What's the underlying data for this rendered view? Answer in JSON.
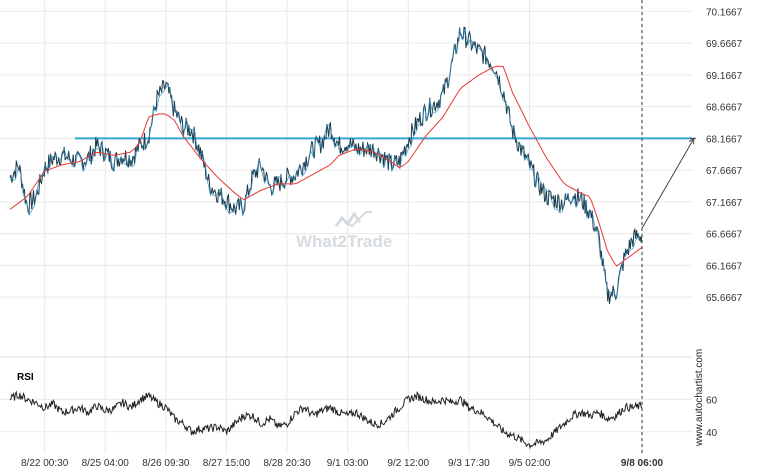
{
  "watermark": "What2Trade",
  "credit": "www.autochartist.com",
  "chart_data": [
    {
      "type": "line",
      "name": "price",
      "y_ticks": [
        65.6667,
        66.1667,
        66.6667,
        67.1667,
        67.6667,
        68.1667,
        68.6667,
        69.1667,
        69.6667,
        70.1667
      ],
      "y_tick_labels": [
        "65.6667",
        "66.1667",
        "66.6667",
        "67.1667",
        "67.6667",
        "68.1667",
        "68.6667",
        "69.1667",
        "69.6667",
        "70.1667"
      ],
      "ylim": [
        65.15,
        70.25
      ],
      "x_tick_labels": [
        "8/22 00:30",
        "8/25 04:00",
        "8/26 09:30",
        "8/27 15:00",
        "8/28 20:30",
        "9/1 03:00",
        "9/2 12:00",
        "9/3 17:30",
        "9/5 02:00",
        "9/8 06:00"
      ],
      "last_x_tick_bold": true,
      "grid": true,
      "legend": "none",
      "price_anchors": [
        [
          0,
          67.55
        ],
        [
          1,
          67.75
        ],
        [
          2,
          67.1
        ],
        [
          3,
          67.25
        ],
        [
          4,
          67.7
        ],
        [
          5,
          67.85
        ],
        [
          6,
          67.9
        ],
        [
          7,
          67.85
        ],
        [
          8,
          67.8
        ],
        [
          9,
          67.85
        ],
        [
          10,
          68.05
        ],
        [
          11,
          67.95
        ],
        [
          12,
          67.8
        ],
        [
          13,
          67.9
        ],
        [
          14,
          67.85
        ],
        [
          15,
          68.05
        ],
        [
          16,
          68.2
        ],
        [
          17,
          68.8
        ],
        [
          18,
          69.0
        ],
        [
          19,
          68.6
        ],
        [
          20,
          68.35
        ],
        [
          21,
          68.3
        ],
        [
          22,
          67.95
        ],
        [
          23,
          67.45
        ],
        [
          24,
          67.3
        ],
        [
          25,
          67.2
        ],
        [
          26,
          67.05
        ],
        [
          27,
          67.1
        ],
        [
          28,
          67.55
        ],
        [
          29,
          67.75
        ],
        [
          30,
          67.4
        ],
        [
          31,
          67.45
        ],
        [
          32,
          67.55
        ],
        [
          33,
          67.6
        ],
        [
          34,
          67.8
        ],
        [
          35,
          68.0
        ],
        [
          36,
          68.1
        ],
        [
          37,
          68.35
        ],
        [
          38,
          68.05
        ],
        [
          39,
          68.1
        ],
        [
          40,
          68.0
        ],
        [
          41,
          68.0
        ],
        [
          42,
          68.0
        ],
        [
          43,
          67.9
        ],
        [
          44,
          67.75
        ],
        [
          45,
          67.8
        ],
        [
          46,
          68.15
        ],
        [
          47,
          68.4
        ],
        [
          48,
          68.6
        ],
        [
          49,
          68.7
        ],
        [
          50,
          68.85
        ],
        [
          51,
          69.3
        ],
        [
          52,
          69.85
        ],
        [
          53,
          69.7
        ],
        [
          54,
          69.55
        ],
        [
          55,
          69.45
        ],
        [
          56,
          69.3
        ],
        [
          57,
          68.9
        ],
        [
          58,
          68.3
        ],
        [
          59,
          68.0
        ],
        [
          60,
          67.75
        ],
        [
          61,
          67.45
        ],
        [
          62,
          67.25
        ],
        [
          63,
          67.2
        ],
        [
          64,
          67.15
        ],
        [
          65,
          67.3
        ],
        [
          66,
          67.2
        ],
        [
          67,
          67.0
        ],
        [
          68,
          66.6
        ],
        [
          69,
          65.7
        ],
        [
          70,
          65.75
        ],
        [
          71,
          66.3
        ],
        [
          72,
          66.6
        ],
        [
          73,
          66.65
        ]
      ],
      "ma_anchors": [
        [
          0,
          67.05
        ],
        [
          2,
          67.25
        ],
        [
          4,
          67.65
        ],
        [
          6,
          67.75
        ],
        [
          8,
          67.8
        ],
        [
          10,
          67.95
        ],
        [
          12,
          67.9
        ],
        [
          14,
          67.95
        ],
        [
          15,
          68.1
        ],
        [
          16,
          68.5
        ],
        [
          17,
          68.55
        ],
        [
          18,
          68.55
        ],
        [
          19,
          68.45
        ],
        [
          20,
          68.2
        ],
        [
          22,
          67.85
        ],
        [
          24,
          67.55
        ],
        [
          26,
          67.3
        ],
        [
          27,
          67.2
        ],
        [
          29,
          67.35
        ],
        [
          31,
          67.45
        ],
        [
          33,
          67.45
        ],
        [
          35,
          67.6
        ],
        [
          37,
          67.75
        ],
        [
          38,
          67.9
        ],
        [
          40,
          68.0
        ],
        [
          42,
          67.95
        ],
        [
          44,
          67.8
        ],
        [
          45,
          67.7
        ],
        [
          46,
          67.8
        ],
        [
          48,
          68.2
        ],
        [
          50,
          68.5
        ],
        [
          52,
          68.95
        ],
        [
          54,
          69.15
        ],
        [
          56,
          69.3
        ],
        [
          57,
          69.3
        ],
        [
          58,
          68.9
        ],
        [
          60,
          68.35
        ],
        [
          62,
          67.85
        ],
        [
          64,
          67.45
        ],
        [
          66,
          67.3
        ],
        [
          67,
          67.25
        ],
        [
          68,
          66.85
        ],
        [
          69,
          66.4
        ],
        [
          70,
          66.15
        ],
        [
          72,
          66.35
        ],
        [
          73,
          66.45
        ]
      ],
      "resistance_level": 68.1667,
      "forecast": {
        "from": [
          73,
          66.75
        ],
        "to": [
          80,
          68.1667
        ]
      },
      "x_ticks_at": [
        4,
        11,
        18,
        25,
        32,
        39,
        46,
        53,
        60,
        73
      ]
    },
    {
      "type": "line",
      "name": "RSI",
      "title": "RSI",
      "y_ticks": [
        40,
        60
      ],
      "y_tick_labels": [
        "40",
        "60"
      ],
      "ylim": [
        30,
        75
      ],
      "anchors": [
        [
          0,
          60
        ],
        [
          1,
          63
        ],
        [
          2,
          60
        ],
        [
          3,
          58
        ],
        [
          4,
          55
        ],
        [
          5,
          57
        ],
        [
          6,
          52
        ],
        [
          7,
          53
        ],
        [
          8,
          55
        ],
        [
          9,
          52
        ],
        [
          10,
          56
        ],
        [
          11,
          53
        ],
        [
          12,
          54
        ],
        [
          13,
          58
        ],
        [
          14,
          55
        ],
        [
          15,
          60
        ],
        [
          16,
          62
        ],
        [
          17,
          58
        ],
        [
          18,
          55
        ],
        [
          19,
          48
        ],
        [
          20,
          45
        ],
        [
          21,
          40
        ],
        [
          22,
          42
        ],
        [
          23,
          42
        ],
        [
          24,
          43
        ],
        [
          25,
          40
        ],
        [
          26,
          45
        ],
        [
          27,
          50
        ],
        [
          28,
          50
        ],
        [
          29,
          45
        ],
        [
          30,
          48
        ],
        [
          31,
          43
        ],
        [
          32,
          45
        ],
        [
          33,
          52
        ],
        [
          34,
          55
        ],
        [
          35,
          50
        ],
        [
          36,
          53
        ],
        [
          37,
          55
        ],
        [
          38,
          52
        ],
        [
          39,
          50
        ],
        [
          40,
          52
        ],
        [
          41,
          48
        ],
        [
          42,
          45
        ],
        [
          43,
          45
        ],
        [
          44,
          50
        ],
        [
          45,
          55
        ],
        [
          46,
          60
        ],
        [
          47,
          62
        ],
        [
          48,
          60
        ],
        [
          49,
          58
        ],
        [
          50,
          60
        ],
        [
          51,
          58
        ],
        [
          52,
          60
        ],
        [
          53,
          55
        ],
        [
          54,
          53
        ],
        [
          55,
          50
        ],
        [
          56,
          45
        ],
        [
          57,
          40
        ],
        [
          58,
          38
        ],
        [
          59,
          35
        ],
        [
          60,
          32
        ],
        [
          61,
          33
        ],
        [
          62,
          35
        ],
        [
          63,
          40
        ],
        [
          64,
          45
        ],
        [
          65,
          50
        ],
        [
          66,
          52
        ],
        [
          67,
          50
        ],
        [
          68,
          52
        ],
        [
          69,
          48
        ],
        [
          70,
          50
        ],
        [
          71,
          55
        ],
        [
          72,
          55
        ],
        [
          73,
          56
        ]
      ]
    }
  ],
  "colors": {
    "price": "#1a3c4d",
    "price_accent": "#2a8fc0",
    "ma": "#e53935",
    "resistance": "#33a8d9",
    "forecast": "#444444",
    "grid": "#e9e9e9",
    "rsi": "#222222"
  }
}
